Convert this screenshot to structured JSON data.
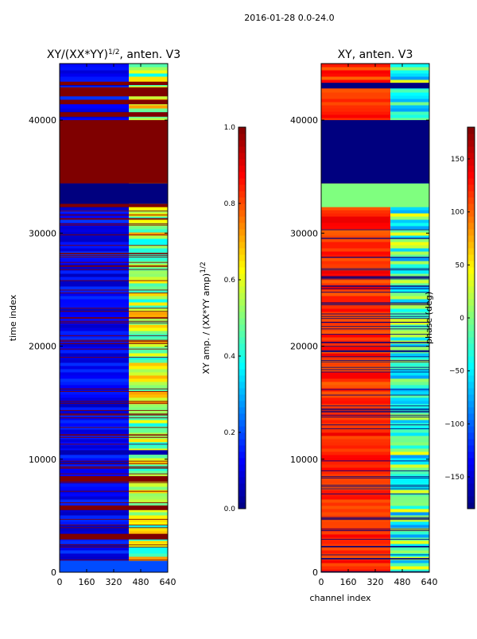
{
  "figure": {
    "suptitle": "2016-01-28 0.0-24.0",
    "shared_xlabel": "channel index"
  },
  "colors": {
    "jet": [
      "#00007f",
      "#0000ff",
      "#007fff",
      "#00ffff",
      "#7fff7f",
      "#ffff00",
      "#ff7f00",
      "#ff0000",
      "#7f0000"
    ],
    "frame": "#000000",
    "background": "#ffffff"
  },
  "chart_data": [
    {
      "type": "heatmap",
      "title_base": "XY/(XX*YY)",
      "title_exp": "1/2",
      "title_suffix": ", anten. V3",
      "xlabel": "",
      "ylabel": "time index",
      "x_ticks": [
        0,
        160,
        320,
        480,
        640
      ],
      "y_ticks": [
        0,
        10000,
        20000,
        30000,
        40000
      ],
      "xlim": [
        0,
        640
      ],
      "ylim": [
        0,
        45000
      ],
      "colormap": "jet",
      "colorbar": {
        "label_base": "XY amp. / (XX*YY amp)",
        "label_exp": "1/2",
        "vmin": 0.0,
        "vmax": 1.0,
        "ticks": [
          "0.0",
          "0.2",
          "0.4",
          "0.6",
          "0.8",
          "1.0"
        ]
      },
      "bands": [
        {
          "t_start": 0,
          "t_end": 1000,
          "value": 0.2
        },
        {
          "t_start": 2900,
          "t_end": 3400,
          "value": 1.0
        },
        {
          "t_start": 5500,
          "t_end": 5900,
          "value": 1.0
        },
        {
          "t_start": 8000,
          "t_end": 8500,
          "value": 1.0
        },
        {
          "t_start": 10400,
          "t_end": 10800,
          "value": 0.05
        },
        {
          "t_start": 32300,
          "t_end": 32600,
          "value": 1.0
        },
        {
          "t_start": 32600,
          "t_end": 34400,
          "value": 0.0
        },
        {
          "t_start": 34400,
          "t_end": 40000,
          "value": 1.0
        },
        {
          "t_start": 40300,
          "t_end": 40700,
          "value": 1.0
        },
        {
          "t_start": 41400,
          "t_end": 41800,
          "value": 1.0
        },
        {
          "t_start": 42100,
          "t_end": 42900,
          "value": 1.0
        },
        {
          "t_start": 43100,
          "t_end": 43400,
          "value": 1.0
        }
      ],
      "typical": {
        "low_channels": 0.12,
        "high_channels_start": 410,
        "high_channels": 0.55
      },
      "bad_lines_value": 1.0
    },
    {
      "type": "heatmap",
      "title_base": "XY, anten. V3",
      "title_exp": "",
      "title_suffix": "",
      "xlabel": "channel index",
      "ylabel": "",
      "x_ticks": [
        0,
        160,
        320,
        480,
        640
      ],
      "y_ticks": [
        0,
        10000,
        20000,
        30000,
        40000
      ],
      "xlim": [
        0,
        640
      ],
      "ylim": [
        0,
        45000
      ],
      "colormap": "jet",
      "colorbar": {
        "label_base": "phase (deg)",
        "label_exp": "",
        "vmin": -180,
        "vmax": 180,
        "ticks": [
          "−150",
          "−100",
          "−50",
          "0",
          "50",
          "100",
          "150"
        ]
      },
      "bands": [
        {
          "t_start": 32300,
          "t_end": 34400,
          "value": 0.0
        },
        {
          "t_start": 34400,
          "t_end": 40000,
          "value": -180.0
        },
        {
          "t_start": 42800,
          "t_end": 43300,
          "value": -180.0
        }
      ],
      "typical": {
        "low_channels": 120.0,
        "high_channels_start": 410,
        "high_channels": -20.0
      },
      "bad_lines_value": -180.0
    }
  ]
}
